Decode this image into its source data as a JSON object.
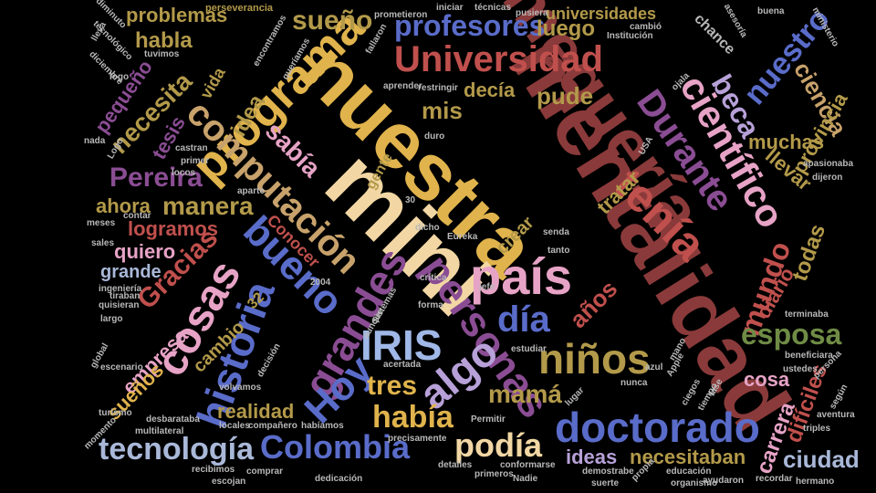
{
  "palette": {
    "cream": "#f2d7a4",
    "gold": "#e0b34c",
    "maroon": "#8a3a3a",
    "crimson": "#c0504d",
    "pink": "#e7a3c6",
    "lavender": "#b7a1d8",
    "purple": "#8a4d93",
    "blue": "#5a6cc9",
    "lightblue": "#9fb8e8",
    "steel": "#a9b8d8",
    "green": "#6f8c45",
    "olive": "#b39a4a",
    "tan": "#c8a26b",
    "gray": "#b8b8b8",
    "rose": "#d08080"
  },
  "words": [
    {
      "text": "mentalidad",
      "color": "maroon"
    },
    {
      "text": "nuestra",
      "color": "gold"
    },
    {
      "text": "mini",
      "color": "cream"
    },
    {
      "text": "mequería",
      "color": "maroon"
    },
    {
      "text": "programa",
      "color": "gold"
    },
    {
      "text": "computación",
      "color": "tan"
    },
    {
      "text": "Universidad",
      "color": "crimson"
    },
    {
      "text": "país",
      "color": "pink"
    },
    {
      "text": "tenía",
      "color": "crimson"
    },
    {
      "text": "Durante",
      "color": "purple"
    },
    {
      "text": "científico",
      "color": "pink"
    },
    {
      "text": "personas",
      "color": "purple"
    },
    {
      "text": "grandes",
      "color": "purple"
    },
    {
      "text": "cosas",
      "color": "pink"
    },
    {
      "text": "historia",
      "color": "blue"
    },
    {
      "text": "bueno",
      "color": "blue"
    },
    {
      "text": "doctorado",
      "color": "blue"
    },
    {
      "text": "IRIS",
      "color": "lightblue"
    },
    {
      "text": "Hoy",
      "color": "blue"
    },
    {
      "text": "algo",
      "color": "lavender"
    },
    {
      "text": "niños",
      "color": "olive"
    },
    {
      "text": "día",
      "color": "blue"
    },
    {
      "text": "Colombia",
      "color": "blue"
    },
    {
      "text": "tecnología",
      "color": "steel"
    },
    {
      "text": "podía",
      "color": "cream"
    },
    {
      "text": "había",
      "color": "gold"
    },
    {
      "text": "tres",
      "color": "gold"
    },
    {
      "text": "mamá",
      "color": "olive"
    },
    {
      "text": "profesores",
      "color": "blue"
    },
    {
      "text": "sueño",
      "color": "olive"
    },
    {
      "text": "problemas",
      "color": "olive"
    },
    {
      "text": "habla",
      "color": "olive"
    },
    {
      "text": "luego",
      "color": "olive"
    },
    {
      "text": "universidades",
      "color": "olive"
    },
    {
      "text": "nuestro",
      "color": "blue"
    },
    {
      "text": "beca",
      "color": "lavender"
    },
    {
      "text": "ciencia",
      "color": "tan"
    },
    {
      "text": "provincia",
      "color": "olive"
    },
    {
      "text": "muchas",
      "color": "olive"
    },
    {
      "text": "llevar",
      "color": "olive"
    },
    {
      "text": "todas",
      "color": "olive"
    },
    {
      "text": "mundo",
      "color": "crimson"
    },
    {
      "text": "esposa",
      "color": "green"
    },
    {
      "text": "diario",
      "color": "crimson"
    },
    {
      "text": "difíciles",
      "color": "crimson"
    },
    {
      "text": "cosa",
      "color": "pink"
    },
    {
      "text": "carrera",
      "color": "pink"
    },
    {
      "text": "ciudad",
      "color": "steel"
    },
    {
      "text": "necesitaban",
      "color": "olive"
    },
    {
      "text": "ideas",
      "color": "lavender"
    },
    {
      "text": "necesita",
      "color": "olive"
    },
    {
      "text": "pequeño",
      "color": "purple"
    },
    {
      "text": "tesis",
      "color": "purple"
    },
    {
      "text": "Pereira",
      "color": "purple"
    },
    {
      "text": "ahora",
      "color": "olive"
    },
    {
      "text": "manera",
      "color": "olive"
    },
    {
      "text": "logramos",
      "color": "crimson"
    },
    {
      "text": "quiero",
      "color": "pink"
    },
    {
      "text": "grande",
      "color": "steel"
    },
    {
      "text": "Gracias",
      "color": "crimson"
    },
    {
      "text": "empresa",
      "color": "pink"
    },
    {
      "text": "sueños",
      "color": "gold"
    },
    {
      "text": "realidad",
      "color": "olive"
    },
    {
      "text": "cambio",
      "color": "olive"
    },
    {
      "text": "idea",
      "color": "olive"
    },
    {
      "text": "sabía",
      "color": "pink"
    },
    {
      "text": "mis",
      "color": "olive"
    },
    {
      "text": "pude",
      "color": "olive"
    },
    {
      "text": "decía",
      "color": "olive"
    },
    {
      "text": "crear",
      "color": "olive"
    },
    {
      "text": "tratar",
      "color": "olive"
    },
    {
      "text": "años",
      "color": "crimson"
    },
    {
      "text": "Conocer",
      "color": "crimson"
    },
    {
      "text": "chance",
      "color": "gray"
    },
    {
      "text": "vida",
      "color": "olive"
    },
    {
      "text": "gente",
      "color": "olive"
    },
    {
      "text": "perseverancia",
      "color": "olive"
    },
    {
      "text": "técnicas",
      "color": "gray"
    },
    {
      "text": "pusiera",
      "color": "gray"
    },
    {
      "text": "buena",
      "color": "gray"
    },
    {
      "text": "ministerio",
      "color": "gray"
    },
    {
      "text": "Institución",
      "color": "gray"
    },
    {
      "text": "cambió",
      "color": "gray"
    },
    {
      "text": "asesoría",
      "color": "gray"
    },
    {
      "text": "escenario",
      "color": "gray"
    },
    {
      "text": "turismo",
      "color": "gray"
    },
    {
      "text": "momento",
      "color": "gray"
    },
    {
      "text": "desbaratabа",
      "color": "gray"
    },
    {
      "text": "multilateral",
      "color": "gray"
    },
    {
      "text": "locales",
      "color": "gray"
    },
    {
      "text": "compañero",
      "color": "gray"
    },
    {
      "text": "habíamos",
      "color": "gray"
    },
    {
      "text": "recibimos",
      "color": "gray"
    },
    {
      "text": "escojan",
      "color": "gray"
    },
    {
      "text": "comprar",
      "color": "gray"
    },
    {
      "text": "dedicación",
      "color": "gray"
    },
    {
      "text": "educación",
      "color": "gray"
    },
    {
      "text": "ayudaron",
      "color": "gray"
    },
    {
      "text": "organismo",
      "color": "gray"
    },
    {
      "text": "recordar",
      "color": "gray"
    },
    {
      "text": "hermano",
      "color": "gray"
    },
    {
      "text": "precisamente",
      "color": "gray"
    },
    {
      "text": "Permitir",
      "color": "gray"
    },
    {
      "text": "primeros",
      "color": "gray"
    },
    {
      "text": "Nadie",
      "color": "gray"
    },
    {
      "text": "conformarse",
      "color": "gray"
    },
    {
      "text": "detalles",
      "color": "gray"
    },
    {
      "text": "demostrabe",
      "color": "gray"
    },
    {
      "text": "propia",
      "color": "gray"
    },
    {
      "text": "suerte",
      "color": "gray"
    },
    {
      "text": "ingeniería",
      "color": "gray"
    },
    {
      "text": "quisieran",
      "color": "gray"
    },
    {
      "text": "tiraban",
      "color": "gray"
    },
    {
      "text": "largo",
      "color": "gray"
    },
    {
      "text": "global",
      "color": "gray"
    },
    {
      "text": "estudiar",
      "color": "gray"
    },
    {
      "text": "crítica",
      "color": "gray"
    },
    {
      "text": "Sistemas",
      "color": "gray"
    },
    {
      "text": "aunque",
      "color": "gray"
    },
    {
      "text": "acertada",
      "color": "gray"
    },
    {
      "text": "volvamos",
      "color": "gray"
    },
    {
      "text": "decisión",
      "color": "gray"
    },
    {
      "text": "terminaba",
      "color": "gray"
    },
    {
      "text": "beneficiara",
      "color": "gray"
    },
    {
      "text": "ustedes",
      "color": "gray"
    },
    {
      "text": "persona",
      "color": "gray"
    },
    {
      "text": "nunca",
      "color": "gray"
    },
    {
      "text": "lugar",
      "color": "gray"
    },
    {
      "text": "azul",
      "color": "gray"
    },
    {
      "text": "mano",
      "color": "gray"
    },
    {
      "text": "fase",
      "color": "gray"
    },
    {
      "text": "tiempo",
      "color": "gray"
    },
    {
      "text": "ciegos",
      "color": "gray"
    },
    {
      "text": "Apple",
      "color": "gray"
    },
    {
      "text": "castran",
      "color": "gray"
    },
    {
      "text": "primer",
      "color": "gray"
    },
    {
      "text": "locos",
      "color": "gray"
    },
    {
      "text": "aparte",
      "color": "gray"
    },
    {
      "text": "contar",
      "color": "gray"
    },
    {
      "text": "meses",
      "color": "gray"
    },
    {
      "text": "sales",
      "color": "gray"
    },
    {
      "text": "2004",
      "color": "gray"
    },
    {
      "text": "32",
      "color": "olive"
    },
    {
      "text": "30",
      "color": "gray"
    },
    {
      "text": "USA",
      "color": "gray"
    },
    {
      "text": "nada",
      "color": "gray"
    },
    {
      "text": "Logo",
      "color": "gray"
    },
    {
      "text": "lleva",
      "color": "gray"
    },
    {
      "text": "apasionaba",
      "color": "gray"
    },
    {
      "text": "dijeron",
      "color": "gray"
    },
    {
      "text": "aventura",
      "color": "gray"
    },
    {
      "text": "según",
      "color": "gray"
    },
    {
      "text": "triples",
      "color": "gray"
    },
    {
      "text": "Eureka",
      "color": "gray"
    },
    {
      "text": "tanto",
      "color": "gray"
    },
    {
      "text": "senda",
      "color": "gray"
    },
    {
      "text": "jefe",
      "color": "gray"
    },
    {
      "text": "forma",
      "color": "gray"
    },
    {
      "text": "dicho",
      "color": "gray"
    },
    {
      "text": "aprender",
      "color": "gray"
    },
    {
      "text": "restringir",
      "color": "gray"
    },
    {
      "text": "duro",
      "color": "gray"
    },
    {
      "text": "fallaron",
      "color": "gray"
    },
    {
      "text": "prometieron",
      "color": "gray"
    },
    {
      "text": "iniciar",
      "color": "gray"
    },
    {
      "text": "encontramos",
      "color": "gray"
    },
    {
      "text": "queríamos",
      "color": "gray"
    },
    {
      "text": "diminuto",
      "color": "gray"
    },
    {
      "text": "tecnológico",
      "color": "gray"
    },
    {
      "text": "tuvimos",
      "color": "gray"
    },
    {
      "text": "diciembre",
      "color": "gray"
    },
    {
      "text": "logo",
      "color": "gray"
    },
    {
      "text": "ojala",
      "color": "gray"
    }
  ]
}
